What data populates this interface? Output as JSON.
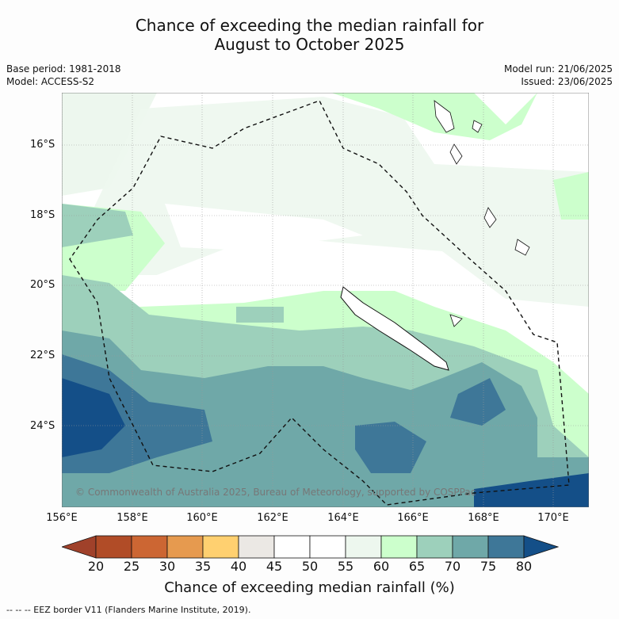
{
  "title_line1": "Chance of exceeding the median rainfall for",
  "title_line2": "August to October 2025",
  "base_period": "Base period: 1981-2018",
  "model": "Model: ACCESS-S2",
  "model_run": "Model run: 21/06/2025",
  "issued": "Issued: 23/06/2025",
  "copyright": "© Commonwealth of Australia 2025, Bureau of Meteorology, supported by COSPPac",
  "lat_labels": [
    "16°S",
    "18°S",
    "20°S",
    "22°S",
    "24°S"
  ],
  "lon_labels": [
    "156°E",
    "158°E",
    "160°E",
    "162°E",
    "164°E",
    "166°E",
    "168°E",
    "170°E"
  ],
  "colorbar": {
    "ticks": [
      "20",
      "25",
      "30",
      "35",
      "40",
      "45",
      "50",
      "55",
      "60",
      "65",
      "70",
      "75",
      "80"
    ],
    "colors": [
      "#a0412a",
      "#b14c27",
      "#cc6633",
      "#e69a4f",
      "#ffd070",
      "#ebe8e4",
      "#ffffff",
      "#ffffff",
      "#edf7ee",
      "#ccffcc",
      "#9dd0bb",
      "#6fa8a8",
      "#3e7798",
      "#144f88"
    ],
    "title": "Chance of exceeding median rainfall (%)"
  },
  "footnote": "--  --  -- EEZ border V11 (Flanders Marine Institute, 2019)."
}
